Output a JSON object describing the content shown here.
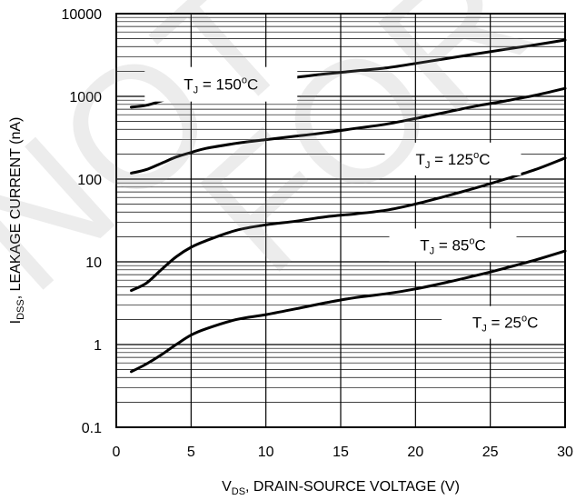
{
  "chart_data": {
    "type": "line",
    "xlabel": {
      "main": "V",
      "sub": "DS",
      "rest": ", DRAIN-SOURCE VOLTAGE (V)"
    },
    "ylabel": {
      "main": "I",
      "sub": "DSS",
      "rest": ", LEAKAGE CURRENT (nA)"
    },
    "xlim": [
      0,
      30
    ],
    "ylim": [
      0.1,
      10000
    ],
    "y_scale": "log",
    "x_ticks": [
      "0",
      "5",
      "10",
      "15",
      "20",
      "25",
      "30"
    ],
    "y_ticks": [
      "0.1",
      "1",
      "10",
      "100",
      "1000",
      "10000"
    ],
    "grid": true,
    "watermark": "NOT FOR",
    "series": [
      {
        "name": "T_J = 150°C",
        "label": {
          "pre": "T",
          "sub": "J",
          "post": " = 150",
          "sup": "o",
          "unit": "C"
        },
        "x": [
          1,
          2,
          3,
          4,
          5,
          6,
          8,
          10,
          12,
          14,
          16,
          18,
          20,
          22,
          24,
          26,
          28,
          30
        ],
        "y": [
          740,
          780,
          880,
          1000,
          1100,
          1200,
          1400,
          1550,
          1700,
          1870,
          2030,
          2200,
          2500,
          2850,
          3250,
          3700,
          4200,
          4800
        ]
      },
      {
        "name": "T_J = 125°C",
        "label": {
          "pre": "T",
          "sub": "J",
          "post": " = 125",
          "sup": "o",
          "unit": "C"
        },
        "x": [
          1,
          2,
          3,
          4,
          5,
          6,
          8,
          10,
          12,
          14,
          16,
          18,
          20,
          22,
          24,
          26,
          28,
          30
        ],
        "y": [
          118,
          130,
          155,
          185,
          210,
          235,
          270,
          300,
          330,
          365,
          410,
          460,
          540,
          640,
          760,
          880,
          1030,
          1250
        ]
      },
      {
        "name": "T_J = 85°C",
        "label": {
          "pre": "T",
          "sub": "J",
          "post": " = 85",
          "sup": "o",
          "unit": "C"
        },
        "x": [
          1,
          2,
          3,
          4,
          5,
          6,
          8,
          10,
          12,
          14,
          16,
          18,
          20,
          22,
          24,
          26,
          28,
          30
        ],
        "y": [
          4.5,
          5.5,
          8,
          11.5,
          15,
          18,
          24,
          28,
          31,
          35,
          38,
          42,
          50,
          62,
          78,
          100,
          130,
          180
        ]
      },
      {
        "name": "T_J = 25°C",
        "label": {
          "pre": "T",
          "sub": "J",
          "post": " = 25",
          "sup": "o",
          "unit": "C"
        },
        "x": [
          1,
          2,
          3,
          4,
          5,
          6,
          8,
          10,
          12,
          14,
          16,
          18,
          20,
          22,
          24,
          26,
          28,
          30
        ],
        "y": [
          0.47,
          0.58,
          0.75,
          1.0,
          1.3,
          1.55,
          2.0,
          2.3,
          2.7,
          3.2,
          3.7,
          4.1,
          4.7,
          5.6,
          6.8,
          8.4,
          10.5,
          13.5
        ]
      }
    ]
  }
}
